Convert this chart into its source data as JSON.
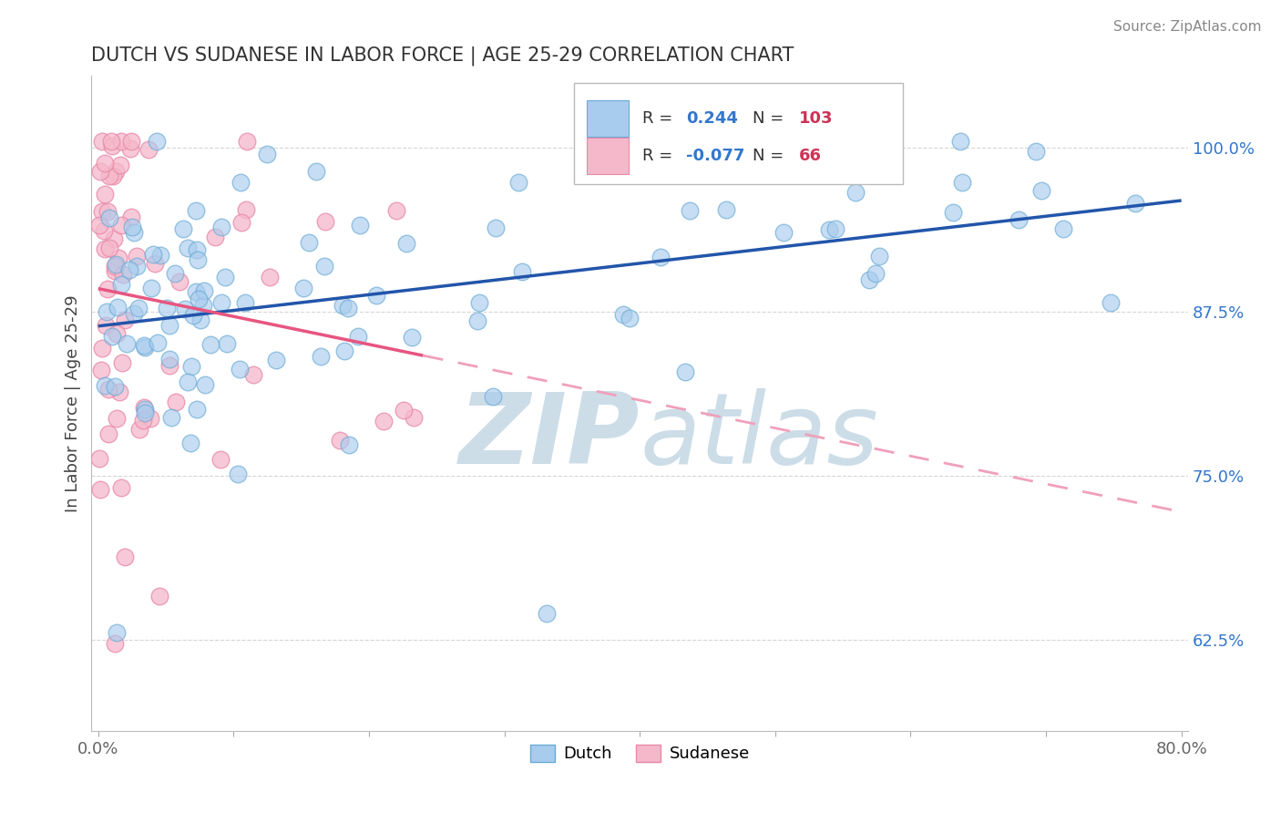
{
  "title": "DUTCH VS SUDANESE IN LABOR FORCE | AGE 25-29 CORRELATION CHART",
  "source_text": "Source: ZipAtlas.com",
  "ylabel": "In Labor Force | Age 25-29",
  "xlim": [
    -0.005,
    0.805
  ],
  "ylim": [
    0.555,
    1.055
  ],
  "ytick_positions": [
    0.625,
    0.75,
    0.875,
    1.0
  ],
  "ytick_labels": [
    "62.5%",
    "75.0%",
    "87.5%",
    "100.0%"
  ],
  "xtick_positions": [
    0.0,
    0.1,
    0.2,
    0.3,
    0.4,
    0.5,
    0.6,
    0.7,
    0.8
  ],
  "xtick_labels": [
    "0.0%",
    "",
    "",
    "",
    "",
    "",
    "",
    "",
    "80.0%"
  ],
  "dutch_R": 0.244,
  "dutch_N": 103,
  "sudanese_R": -0.077,
  "sudanese_N": 66,
  "dutch_color": "#a8ccee",
  "dutch_edge_color": "#6aaad4",
  "sudanese_color": "#f5b8cb",
  "sudanese_edge_color": "#e888a8",
  "dutch_line_color": "#2255aa",
  "sudanese_line_color": "#e85580",
  "sudanese_dash_color": "#f0a0bb",
  "watermark_color": "#ccdde8",
  "background_color": "#ffffff",
  "title_color": "#333333",
  "ytick_color": "#3377cc",
  "xtick_color": "#666666",
  "ylabel_color": "#444444",
  "source_color": "#888888",
  "legend_text_color_r": "#3377cc",
  "legend_text_color_n": "#cc3355"
}
